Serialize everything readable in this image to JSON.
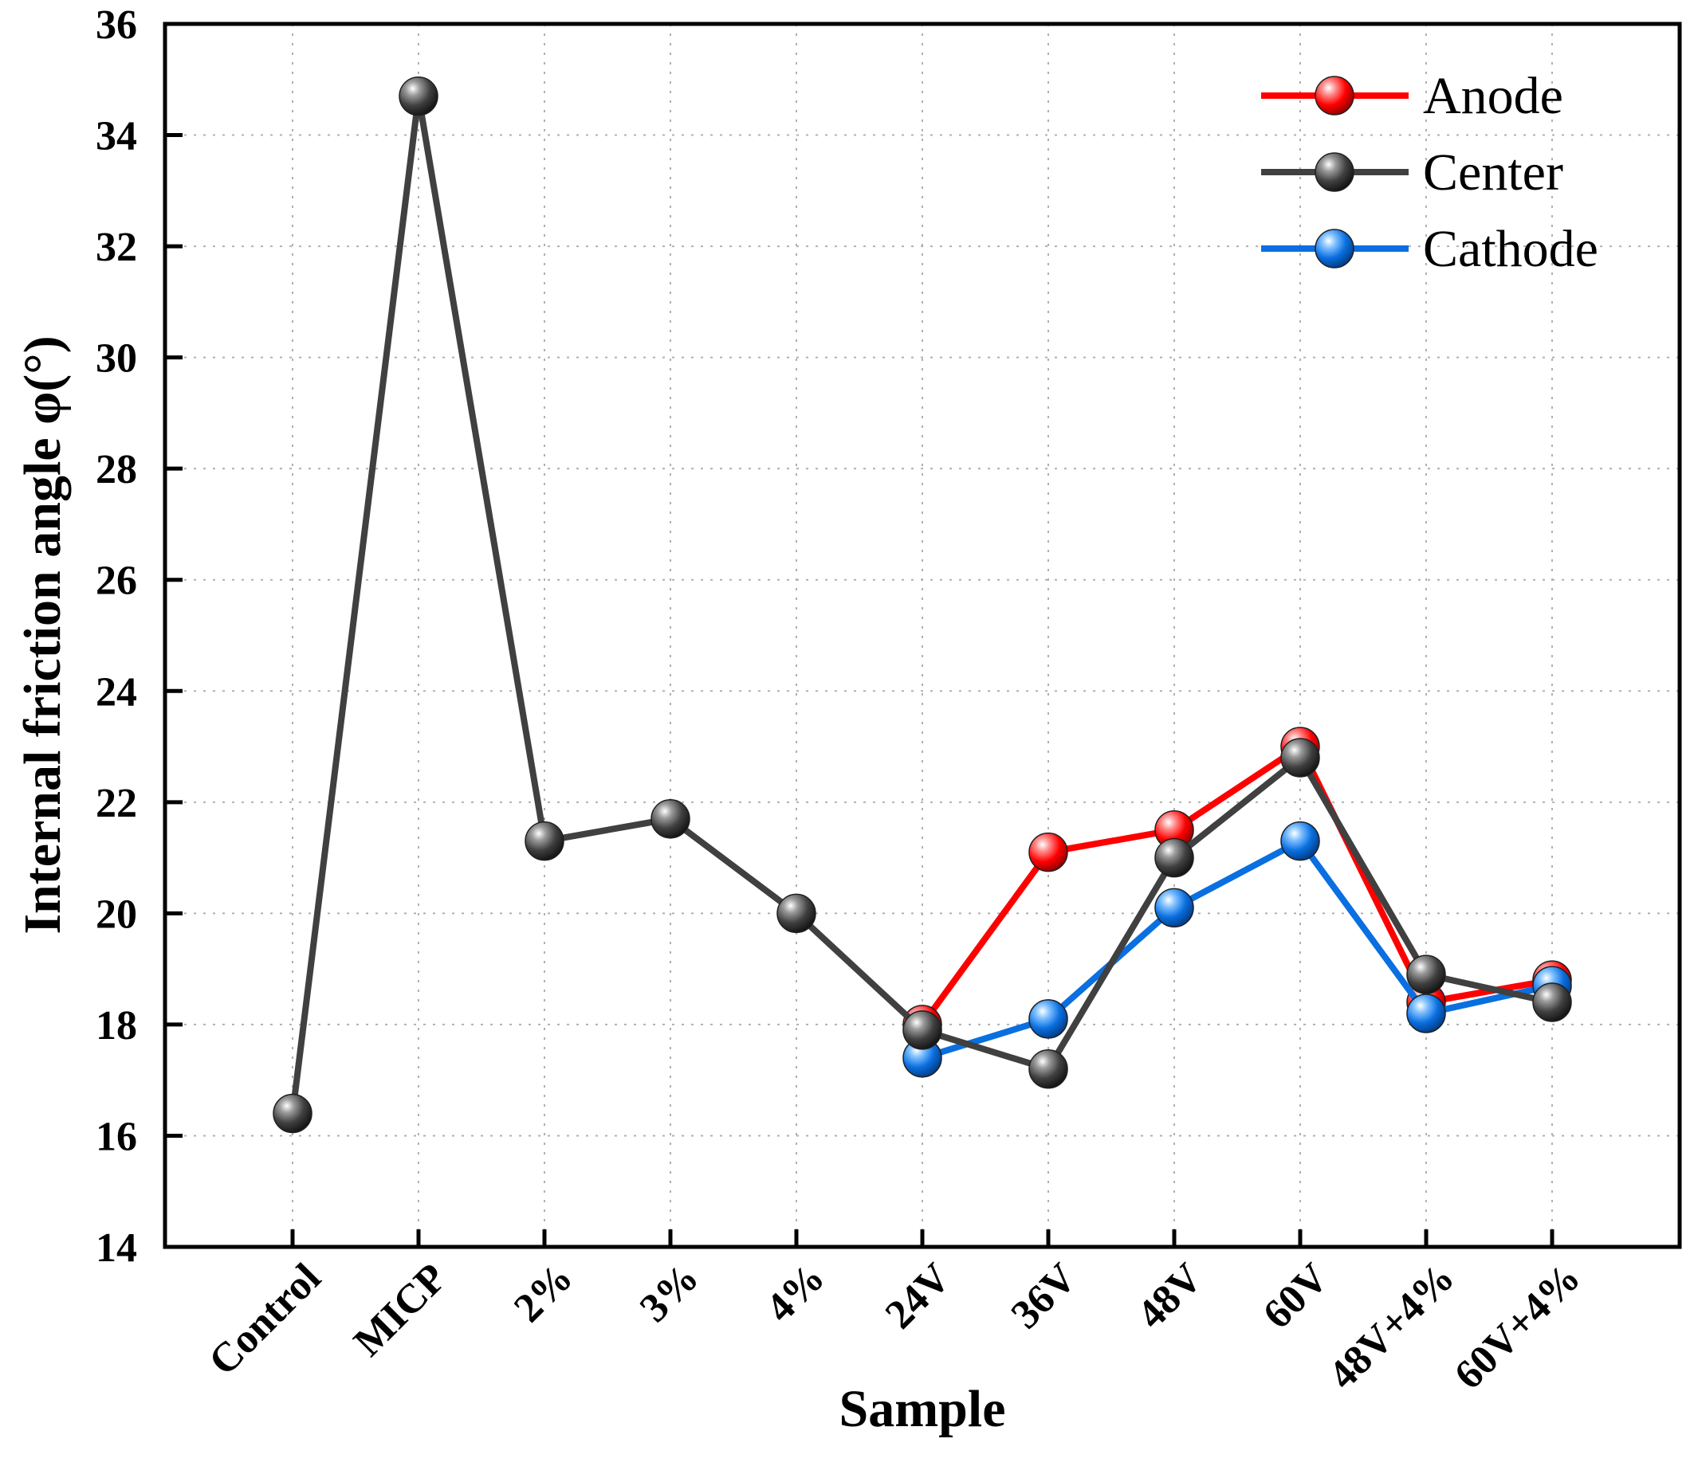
{
  "chart_data": {
    "type": "line",
    "title": "",
    "xlabel": "Sample",
    "ylabel": "Internal friction angle φ(°)",
    "ylim": [
      14,
      36
    ],
    "yticks": [
      14,
      16,
      18,
      20,
      22,
      24,
      26,
      28,
      30,
      32,
      34,
      36
    ],
    "ytick_labels": [
      "14",
      "16",
      "18",
      "20",
      "22",
      "24",
      "26",
      "28",
      "30",
      "32",
      "34",
      "36"
    ],
    "categories": [
      "Control",
      "MICP",
      "2%",
      "3%",
      "4%",
      "24V",
      "36V",
      "48V",
      "60V",
      "48V+4%",
      "60V+4%"
    ],
    "grid": true,
    "legend_position": "top-right",
    "series": [
      {
        "name": "Anode",
        "color": "#ff0000",
        "values": [
          null,
          null,
          null,
          null,
          null,
          18.0,
          21.1,
          21.5,
          23.0,
          18.4,
          18.8
        ]
      },
      {
        "name": "Center",
        "color": "#404040",
        "values": [
          16.4,
          34.7,
          21.3,
          21.7,
          20.0,
          17.9,
          17.2,
          21.0,
          22.8,
          18.9,
          18.4
        ]
      },
      {
        "name": "Cathode",
        "color": "#0a6fe0",
        "values": [
          null,
          null,
          null,
          null,
          null,
          17.4,
          18.1,
          20.1,
          21.3,
          18.2,
          18.7
        ]
      }
    ]
  }
}
